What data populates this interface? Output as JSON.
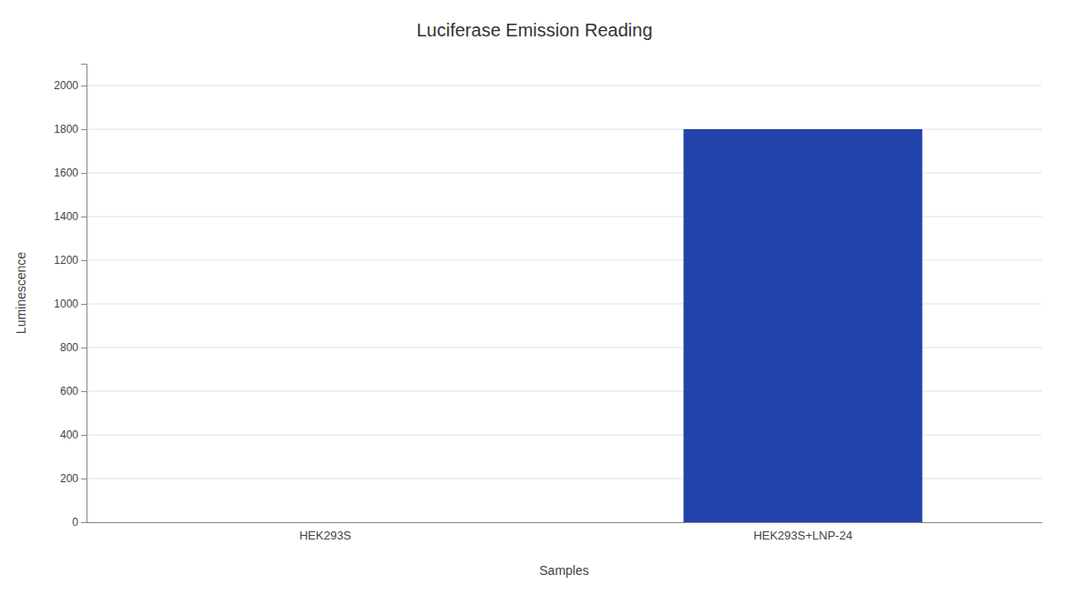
{
  "chart_data": {
    "type": "bar",
    "title": "Luciferase Emission Reading",
    "xlabel": "Samples",
    "ylabel": "Luminescence",
    "categories": [
      "HEK293S",
      "HEK293S+LNP-24"
    ],
    "values": [
      0,
      1800
    ],
    "color": "#2244AA",
    "ylim": [
      0,
      2100
    ],
    "yticks": [
      0,
      200,
      400,
      600,
      800,
      1000,
      1200,
      1400,
      1600,
      1800,
      2000
    ],
    "grid": true
  }
}
